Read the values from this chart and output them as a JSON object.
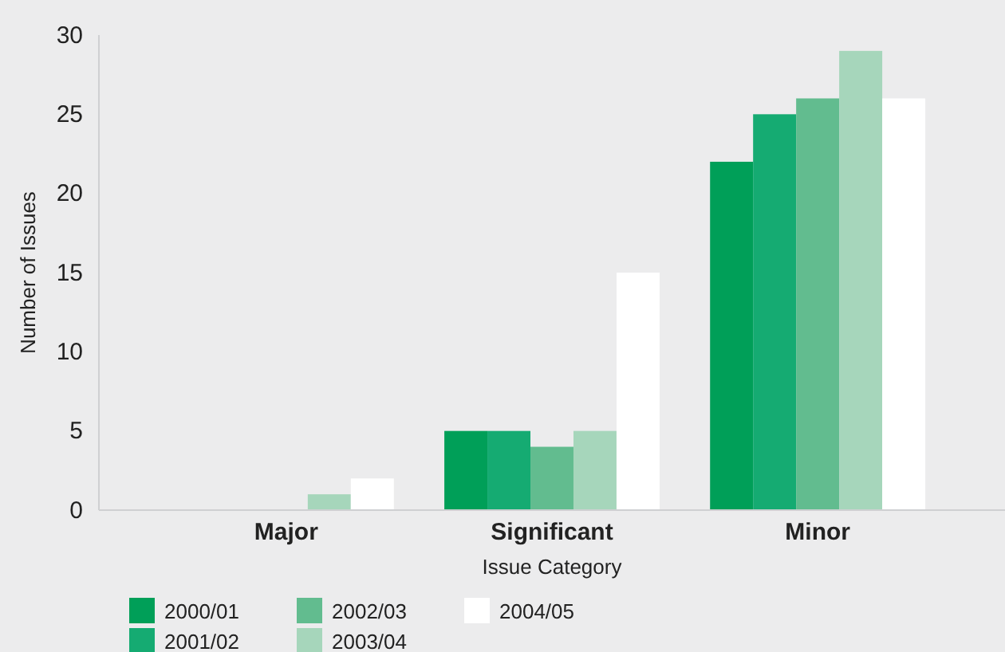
{
  "chart_data": {
    "type": "bar",
    "xlabel": "Issue Category",
    "ylabel": "Number of Issues",
    "categories": [
      "Major",
      "Significant",
      "Minor"
    ],
    "series": [
      {
        "name": "2000/01",
        "color": "#009f58",
        "values": [
          0,
          5,
          22
        ]
      },
      {
        "name": "2001/02",
        "color": "#15ab72",
        "values": [
          0,
          5,
          25
        ]
      },
      {
        "name": "2002/03",
        "color": "#62bc8f",
        "values": [
          0,
          4,
          26
        ]
      },
      {
        "name": "2003/04",
        "color": "#a6d6bb",
        "values": [
          1,
          5,
          29
        ]
      },
      {
        "name": "2004/05",
        "color": "#ffffff",
        "values": [
          2,
          15,
          26
        ]
      }
    ],
    "ylim": [
      0,
      30
    ],
    "yticks": [
      0,
      5,
      10,
      15,
      20,
      25,
      30
    ],
    "grid": false,
    "legend": "bottom left"
  }
}
